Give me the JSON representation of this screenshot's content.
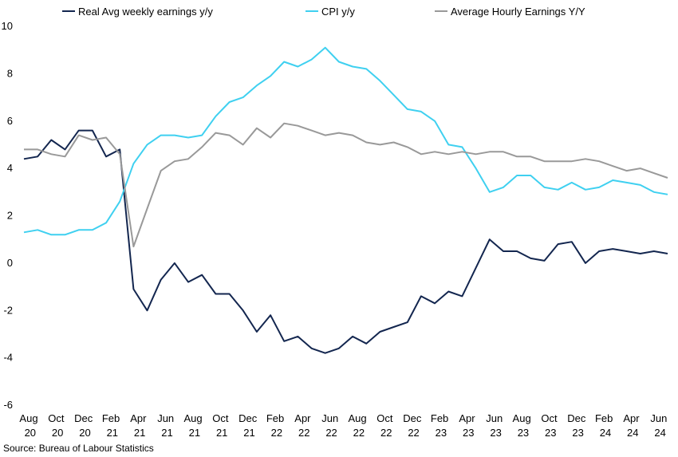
{
  "chart_data": {
    "type": "line",
    "source": "Source: Bureau of Labour Statistics",
    "categories": [
      "Aug 20",
      null,
      "Oct 20",
      null,
      "Dec 20",
      null,
      "Feb 21",
      null,
      "Apr 21",
      null,
      "Jun 21",
      null,
      "Aug 21",
      null,
      "Oct 21",
      null,
      "Dec 21",
      null,
      "Feb 22",
      null,
      "Apr 22",
      null,
      "Jun 22",
      null,
      "Aug 22",
      null,
      "Oct 22",
      null,
      "Dec 22",
      null,
      "Feb 23",
      null,
      "Apr 23",
      null,
      "Jun 23",
      null,
      "Aug 23",
      null,
      "Oct 23",
      null,
      "Dec 23",
      null,
      "Feb 24",
      null,
      "Apr 24",
      null,
      "Jun 24",
      null
    ],
    "series": [
      {
        "name": "Real Avg weekly earnings y/y",
        "color": "#13264f",
        "values": [
          4.4,
          4.5,
          5.2,
          4.8,
          5.6,
          5.6,
          4.5,
          4.8,
          -1.1,
          -2.0,
          -0.7,
          0.0,
          -0.8,
          -0.5,
          -1.3,
          -1.3,
          -2.0,
          -2.9,
          -2.2,
          -3.3,
          -3.1,
          -3.6,
          -3.8,
          -3.6,
          -3.1,
          -3.4,
          -2.9,
          -2.7,
          -2.5,
          -1.4,
          -1.7,
          -1.2,
          -1.4,
          -0.2,
          1.0,
          0.5,
          0.5,
          0.2,
          0.1,
          0.8,
          0.9,
          0.0,
          0.5,
          0.6,
          0.5,
          0.4,
          0.5,
          0.4
        ]
      },
      {
        "name": "CPI y/y",
        "color": "#3fd0f0",
        "values": [
          1.3,
          1.4,
          1.2,
          1.2,
          1.4,
          1.4,
          1.7,
          2.6,
          4.2,
          5.0,
          5.4,
          5.4,
          5.3,
          5.4,
          6.2,
          6.8,
          7.0,
          7.5,
          7.9,
          8.5,
          8.3,
          8.6,
          9.1,
          8.5,
          8.3,
          8.2,
          7.7,
          7.1,
          6.5,
          6.4,
          6.0,
          5.0,
          4.9,
          4.0,
          3.0,
          3.2,
          3.7,
          3.7,
          3.2,
          3.1,
          3.4,
          3.1,
          3.2,
          3.5,
          3.4,
          3.3,
          3.0,
          2.9
        ]
      },
      {
        "name": "Average Hourly Earnings Y/Y",
        "color": "#999999",
        "values": [
          4.8,
          4.8,
          4.6,
          4.5,
          5.4,
          5.2,
          5.3,
          4.6,
          0.7,
          2.3,
          3.9,
          4.3,
          4.4,
          4.9,
          5.5,
          5.4,
          5.0,
          5.7,
          5.3,
          5.9,
          5.8,
          5.6,
          5.4,
          5.5,
          5.4,
          5.1,
          5.0,
          5.1,
          4.9,
          4.6,
          4.7,
          4.6,
          4.7,
          4.6,
          4.7,
          4.7,
          4.5,
          4.5,
          4.3,
          4.3,
          4.3,
          4.4,
          4.3,
          4.1,
          3.9,
          4.0,
          3.8,
          3.6
        ]
      }
    ],
    "ylim": [
      -6,
      10
    ],
    "yticks": [
      -6,
      -4,
      -2,
      0,
      2,
      4,
      6,
      8,
      10
    ],
    "legend": "top"
  }
}
